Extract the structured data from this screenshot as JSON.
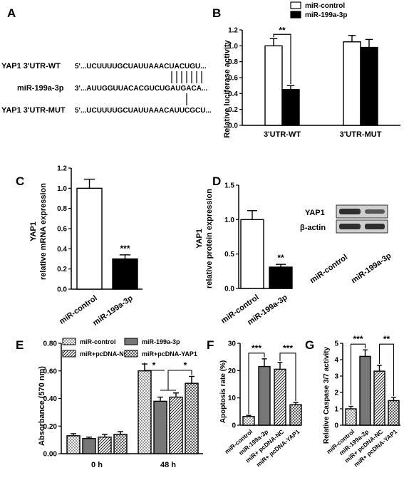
{
  "colors": {
    "white": "#ffffff",
    "black": "#000000",
    "gray": "#777777",
    "blot_band": "#3a3a3a",
    "blot_bg": "#cfcfcf"
  },
  "panel_a": {
    "letter": "A",
    "rows": [
      {
        "name": "YAP1 3'UTR-WT",
        "seq": "5'...UCUUUUGCUAUUAAACUACUGU..."
      },
      {
        "name": "miR-199a-3p",
        "seq": "3'...AUUGGUUACACGUCUGAUGACA..."
      },
      {
        "name": "YAP1 3'UTR-MUT",
        "seq": "5'...UCUUUUGCUAUUAAACAUUCGCU..."
      }
    ]
  },
  "chart_data": [
    {
      "panel": "B",
      "type": "bar",
      "categories": [
        "3'UTR-WT",
        "3'UTR-MUT"
      ],
      "series": [
        {
          "name": "miR-control",
          "values": [
            1.0,
            1.05
          ],
          "errors": [
            0.09,
            0.08
          ],
          "fill": "white"
        },
        {
          "name": "miR-199a-3p",
          "values": [
            0.45,
            0.98
          ],
          "errors": [
            0.05,
            0.1
          ],
          "fill": "black"
        }
      ],
      "ylabel": "Relative luciferase activity",
      "ylim": [
        0,
        1.2
      ],
      "yticks": [
        "0.0",
        "0.2",
        "0.4",
        "0.6",
        "0.8",
        "1.0",
        "1.2"
      ],
      "legend": "top",
      "significance": [
        "**"
      ]
    },
    {
      "panel": "C",
      "type": "bar",
      "categories": [
        "miR-control",
        "miR-199a-3p"
      ],
      "values": [
        1.0,
        0.3
      ],
      "errors": [
        0.09,
        0.04
      ],
      "fills": [
        "white",
        "black"
      ],
      "ylabel_lines": [
        "YAP1",
        "relative mRNA expression"
      ],
      "ylim": [
        0,
        1.2
      ],
      "yticks": [
        "0.0",
        "0.2",
        "0.4",
        "0.6",
        "0.8",
        "1.0",
        "1.2"
      ],
      "significance": [
        "***"
      ]
    },
    {
      "panel": "D",
      "type": "bar",
      "categories": [
        "miR-control",
        "miR-199a-3p"
      ],
      "values": [
        1.0,
        0.31
      ],
      "errors": [
        0.13,
        0.04
      ],
      "fills": [
        "white",
        "black"
      ],
      "ylabel_lines": [
        "YAP1",
        "relative protein expression"
      ],
      "ylim": [
        0,
        1.5
      ],
      "yticks": [
        "0.0",
        "0.5",
        "1.0",
        "1.5"
      ],
      "significance": [
        "**"
      ],
      "blot_rows": [
        "YAP1",
        "β-actin"
      ]
    },
    {
      "panel": "E",
      "type": "bar",
      "categories": [
        "0 h",
        "48 h"
      ],
      "series": [
        {
          "name": "miR-control",
          "values": [
            0.13,
            0.6
          ],
          "errors": [
            0.015,
            0.05
          ],
          "fill": "dots"
        },
        {
          "name": "miR-199a-3p",
          "values": [
            0.11,
            0.38
          ],
          "errors": [
            0.01,
            0.03
          ],
          "fill": "gray"
        },
        {
          "name": "miR+pcDNA-NC",
          "values": [
            0.12,
            0.41
          ],
          "errors": [
            0.02,
            0.03
          ],
          "fill": "hatch"
        },
        {
          "name": "miR+pcDNA-YAP1",
          "values": [
            0.14,
            0.51
          ],
          "errors": [
            0.02,
            0.05
          ],
          "fill": "cross"
        }
      ],
      "ylabel": "Absorbance (570 nm)",
      "ylim": [
        0,
        0.8
      ],
      "yticks": [
        "0.00",
        "0.20",
        "0.40",
        "0.60",
        "0.80"
      ],
      "legend": "top",
      "significance": [
        "*",
        "*"
      ]
    },
    {
      "panel": "F",
      "type": "bar",
      "categories": [
        "miR-control",
        "miR-199a-3p",
        "miR+ pcDNA-NC",
        "miR+ pcDNA-YAP1"
      ],
      "values": [
        3.2,
        21.5,
        20.5,
        7.5
      ],
      "errors": [
        0.4,
        2.8,
        2.5,
        0.8
      ],
      "fills": [
        "dots",
        "gray",
        "hatch",
        "cross"
      ],
      "ylabel": "Apoptosis rate (%)",
      "ylim": [
        0,
        30
      ],
      "yticks": [
        "0",
        "10",
        "20",
        "30"
      ],
      "significance": [
        "***",
        "***"
      ]
    },
    {
      "panel": "G",
      "type": "bar",
      "categories": [
        "miR-control",
        "miR-199a-3p",
        "miR+ pcDNA-NC",
        "miR+ pcDNA-YAP1"
      ],
      "values": [
        1.0,
        4.2,
        3.3,
        1.5
      ],
      "errors": [
        0.15,
        0.4,
        0.35,
        0.2
      ],
      "fills": [
        "dots",
        "gray",
        "hatch",
        "cross"
      ],
      "ylabel": "Relative Caspase 3/7 activity",
      "ylim": [
        0,
        5
      ],
      "yticks": [
        "0",
        "1",
        "2",
        "3",
        "4",
        "5"
      ],
      "significance": [
        "***",
        "**"
      ]
    }
  ]
}
